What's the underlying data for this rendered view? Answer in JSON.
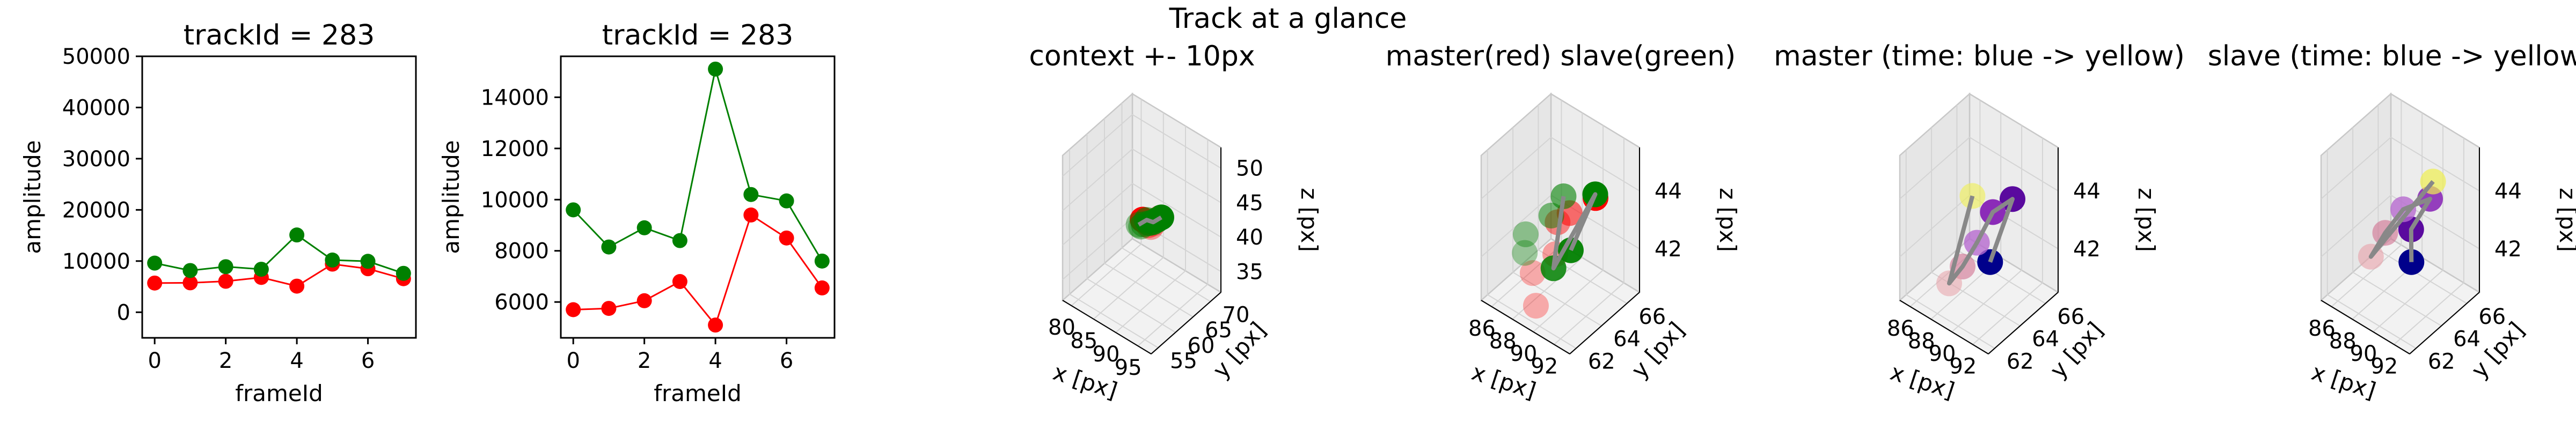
{
  "figure": {
    "suptitle": "Track at a glance"
  },
  "colors": {
    "red": "#ff0000",
    "green": "#008000",
    "blue": "#00008b",
    "yellow": "#f0f050",
    "line_gray": "#888888"
  },
  "chart_data": [
    {
      "type": "line",
      "title": "trackId = 283",
      "xlabel": "frameId",
      "ylabel": "amplitude",
      "xlim": [
        -0.35,
        7.35
      ],
      "ylim": [
        -5000,
        50000
      ],
      "xticks": [
        "0",
        "2",
        "4",
        "6"
      ],
      "yticks": [
        "0",
        "10000",
        "20000",
        "30000",
        "40000",
        "50000"
      ],
      "ytick_values": [
        0,
        10000,
        20000,
        30000,
        40000,
        50000
      ],
      "x": [
        0,
        1,
        2,
        3,
        4,
        5,
        6,
        7
      ],
      "series": [
        {
          "color": "red",
          "values": [
            5700,
            5750,
            6050,
            6800,
            5100,
            9400,
            8500,
            6550
          ]
        },
        {
          "color": "green",
          "values": [
            9600,
            8150,
            8900,
            8400,
            15100,
            10200,
            9950,
            7600
          ]
        }
      ]
    },
    {
      "type": "line",
      "title": "trackId = 283",
      "xlabel": "frameId",
      "ylabel": "amplitude",
      "xlim": [
        -0.35,
        7.35
      ],
      "ylim": [
        4600,
        15600
      ],
      "xticks": [
        "0",
        "2",
        "4",
        "6"
      ],
      "yticks": [
        "6000",
        "8000",
        "10000",
        "12000",
        "14000"
      ],
      "ytick_values": [
        6000,
        8000,
        10000,
        12000,
        14000
      ],
      "x": [
        0,
        1,
        2,
        3,
        4,
        5,
        6,
        7
      ],
      "series": [
        {
          "color": "red",
          "values": [
            5700,
            5750,
            6050,
            6800,
            5100,
            9400,
            8500,
            6550
          ]
        },
        {
          "color": "green",
          "values": [
            9600,
            8150,
            8900,
            8400,
            15100,
            10200,
            9950,
            7600
          ]
        }
      ]
    },
    {
      "type": "scatter",
      "title": "context +- 10px",
      "xlabel": "x [px]",
      "ylabel": "y [px]",
      "zlabel": "z [px]",
      "xlim": [
        78,
        98
      ],
      "ylim": [
        53,
        73
      ],
      "zlim": [
        32,
        53
      ],
      "xticks": [
        "80",
        "85",
        "90",
        "95"
      ],
      "xtick_values": [
        80,
        85,
        90,
        95
      ],
      "yticks": [
        "55",
        "60",
        "65",
        "70"
      ],
      "ytick_values": [
        55,
        60,
        65,
        70
      ],
      "zticks": [
        "35",
        "40",
        "45",
        "50"
      ],
      "ztick_values": [
        35,
        40,
        45,
        50
      ],
      "points": [
        {
          "x": 88.2,
          "y": 63.0,
          "z": 43.2,
          "color": "red",
          "alpha": 1.0
        },
        {
          "x": 88.8,
          "y": 63.2,
          "z": 43.0,
          "color": "red",
          "alpha": 0.55
        },
        {
          "x": 89.2,
          "y": 63.4,
          "z": 42.6,
          "color": "red",
          "alpha": 0.45
        },
        {
          "x": 89.6,
          "y": 63.6,
          "z": 42.4,
          "color": "red",
          "alpha": 0.35
        },
        {
          "x": 89.8,
          "y": 64.0,
          "z": 42.8,
          "color": "red",
          "alpha": 0.3
        },
        {
          "x": 90.6,
          "y": 64.6,
          "z": 43.6,
          "color": "red",
          "alpha": 0.3
        },
        {
          "x": 91.0,
          "y": 64.8,
          "z": 43.8,
          "color": "green",
          "alpha": 1.0
        },
        {
          "x": 90.4,
          "y": 64.4,
          "z": 43.4,
          "color": "green",
          "alpha": 0.9
        },
        {
          "x": 89.8,
          "y": 64.0,
          "z": 43.0,
          "color": "green",
          "alpha": 0.8
        },
        {
          "x": 89.2,
          "y": 63.6,
          "z": 42.8,
          "color": "green",
          "alpha": 0.7
        },
        {
          "x": 88.8,
          "y": 63.4,
          "z": 43.2,
          "color": "green",
          "alpha": 0.6
        },
        {
          "x": 88.4,
          "y": 63.0,
          "z": 42.6,
          "color": "green",
          "alpha": 0.5
        },
        {
          "x": 88.0,
          "y": 62.8,
          "z": 42.2,
          "color": "green",
          "alpha": 0.45
        },
        {
          "x": 87.6,
          "y": 62.6,
          "z": 42.4,
          "color": "green",
          "alpha": 0.4
        }
      ],
      "path": [
        {
          "x": 87.6,
          "y": 62.6,
          "z": 42.4
        },
        {
          "x": 88.8,
          "y": 63.4,
          "z": 43.2
        },
        {
          "x": 89.8,
          "y": 64.0,
          "z": 43.0
        },
        {
          "x": 91.0,
          "y": 64.8,
          "z": 43.8
        }
      ]
    },
    {
      "type": "scatter",
      "title": "master(red) slave(green)",
      "xlabel": "x [px]",
      "ylabel": "y [px]",
      "zlabel": "z [px]",
      "xlim": [
        85,
        93.5
      ],
      "ylim": [
        61.5,
        67
      ],
      "zlim": [
        40.5,
        45.5
      ],
      "xticks": [
        "86",
        "88",
        "90",
        "92"
      ],
      "xtick_values": [
        86,
        88,
        90,
        92
      ],
      "yticks": [
        "62",
        "64",
        "66"
      ],
      "ytick_values": [
        62,
        64,
        66
      ],
      "zticks": [
        "42",
        "44"
      ],
      "ztick_values": [
        42,
        44
      ],
      "points": [
        {
          "x": 92.2,
          "y": 64.6,
          "z": 44.4,
          "color": "red",
          "alpha": 1.0
        },
        {
          "x": 90.2,
          "y": 64.2,
          "z": 43.6,
          "color": "red",
          "alpha": 0.55
        },
        {
          "x": 88.8,
          "y": 64.4,
          "z": 42.9,
          "color": "red",
          "alpha": 0.45
        },
        {
          "x": 89.8,
          "y": 63.4,
          "z": 42.4,
          "color": "red",
          "alpha": 0.35
        },
        {
          "x": 88.6,
          "y": 62.6,
          "z": 41.8,
          "color": "red",
          "alpha": 0.3
        },
        {
          "x": 89.4,
          "y": 62.2,
          "z": 41.0,
          "color": "red",
          "alpha": 0.3
        },
        {
          "x": 91.2,
          "y": 65.4,
          "z": 44.0,
          "color": "green",
          "alpha": 1.0
        },
        {
          "x": 90.8,
          "y": 63.8,
          "z": 42.6,
          "color": "green",
          "alpha": 0.95
        },
        {
          "x": 90.6,
          "y": 62.6,
          "z": 42.4,
          "color": "green",
          "alpha": 0.85
        },
        {
          "x": 88.4,
          "y": 65.2,
          "z": 43.4,
          "color": "green",
          "alpha": 0.6
        },
        {
          "x": 88.2,
          "y": 64.4,
          "z": 43.0,
          "color": "green",
          "alpha": 0.5
        },
        {
          "x": 87.2,
          "y": 63.2,
          "z": 42.6,
          "color": "green",
          "alpha": 0.4
        },
        {
          "x": 87.6,
          "y": 62.8,
          "z": 42.2,
          "color": "green",
          "alpha": 0.35
        }
      ],
      "path": [
        {
          "x": 88.4,
          "y": 65.2,
          "z": 43.4
        },
        {
          "x": 89.8,
          "y": 63.4,
          "z": 42.4
        },
        {
          "x": 90.6,
          "y": 62.6,
          "z": 42.4
        },
        {
          "x": 91.2,
          "y": 65.4,
          "z": 44.0
        },
        {
          "x": 90.8,
          "y": 63.8,
          "z": 42.6
        }
      ]
    },
    {
      "type": "scatter",
      "title": "master (time: blue -> yellow)",
      "xlabel": "x [px]",
      "ylabel": "y [px]",
      "zlabel": "z [px]",
      "xlim": [
        85,
        93.5
      ],
      "ylim": [
        61.5,
        67
      ],
      "zlim": [
        40.5,
        45.5
      ],
      "xticks": [
        "86",
        "88",
        "90",
        "92"
      ],
      "xtick_values": [
        86,
        88,
        90,
        92
      ],
      "yticks": [
        "62",
        "64",
        "66"
      ],
      "ytick_values": [
        62,
        64,
        66
      ],
      "zticks": [
        "42",
        "44"
      ],
      "ztick_values": [
        42,
        44
      ],
      "points": [
        {
          "x": 91.6,
          "y": 63.2,
          "z": 42.6,
          "color": "#00008b",
          "alpha": 1.0
        },
        {
          "x": 91.8,
          "y": 64.8,
          "z": 44.2,
          "color": "#5a0a9e",
          "alpha": 1.0
        },
        {
          "x": 90.4,
          "y": 64.4,
          "z": 43.6,
          "color": "#8b2bb8",
          "alpha": 1.0
        },
        {
          "x": 89.6,
          "y": 63.8,
          "z": 42.6,
          "color": "#b66ad0",
          "alpha": 0.8
        },
        {
          "x": 89.2,
          "y": 63.0,
          "z": 42.0,
          "color": "#d07090",
          "alpha": 0.6
        },
        {
          "x": 88.4,
          "y": 62.6,
          "z": 41.4,
          "color": "#e8a0a8",
          "alpha": 0.55
        },
        {
          "x": 88.2,
          "y": 64.6,
          "z": 43.6,
          "color": "#f0f050",
          "alpha": 0.6
        }
      ],
      "path": [
        {
          "x": 91.6,
          "y": 63.2,
          "z": 42.6
        },
        {
          "x": 91.8,
          "y": 64.8,
          "z": 44.2
        },
        {
          "x": 90.4,
          "y": 64.4,
          "z": 43.6
        },
        {
          "x": 89.6,
          "y": 63.8,
          "z": 42.6
        },
        {
          "x": 89.2,
          "y": 63.0,
          "z": 42.0
        },
        {
          "x": 88.4,
          "y": 62.6,
          "z": 41.4
        },
        {
          "x": 88.2,
          "y": 64.6,
          "z": 43.6
        }
      ]
    },
    {
      "type": "scatter",
      "title": "slave (time: blue -> yellow)",
      "xlabel": "x [px]",
      "ylabel": "y [px]",
      "zlabel": "z [px]",
      "xlim": [
        85,
        93.5
      ],
      "ylim": [
        61.5,
        67
      ],
      "zlim": [
        40.5,
        45.5
      ],
      "xticks": [
        "86",
        "88",
        "90",
        "92"
      ],
      "xtick_values": [
        86,
        88,
        90,
        92
      ],
      "yticks": [
        "62",
        "64",
        "66"
      ],
      "ytick_values": [
        62,
        64,
        66
      ],
      "zticks": [
        "42",
        "44"
      ],
      "ztick_values": [
        42,
        44
      ],
      "points": [
        {
          "x": 91.6,
          "y": 63.2,
          "z": 42.6,
          "color": "#00008b",
          "alpha": 1.0
        },
        {
          "x": 90.6,
          "y": 64.0,
          "z": 43.2,
          "color": "#5a0a9e",
          "alpha": 1.0
        },
        {
          "x": 91.2,
          "y": 65.0,
          "z": 44.0,
          "color": "#8b2bb8",
          "alpha": 0.9
        },
        {
          "x": 89.6,
          "y": 64.2,
          "z": 43.6,
          "color": "#b66ad0",
          "alpha": 0.8
        },
        {
          "x": 88.6,
          "y": 63.6,
          "z": 42.8,
          "color": "#d07090",
          "alpha": 0.6
        },
        {
          "x": 88.2,
          "y": 62.8,
          "z": 42.2,
          "color": "#e8a0a8",
          "alpha": 0.6
        },
        {
          "x": 91.0,
          "y": 65.4,
          "z": 44.4,
          "color": "#f0f050",
          "alpha": 0.7
        }
      ],
      "path": [
        {
          "x": 91.6,
          "y": 63.2,
          "z": 42.6
        },
        {
          "x": 90.6,
          "y": 64.0,
          "z": 43.2
        },
        {
          "x": 91.2,
          "y": 65.0,
          "z": 44.0
        },
        {
          "x": 89.6,
          "y": 64.2,
          "z": 43.6
        },
        {
          "x": 88.6,
          "y": 63.6,
          "z": 42.8
        },
        {
          "x": 88.2,
          "y": 62.8,
          "z": 42.2
        },
        {
          "x": 91.0,
          "y": 65.4,
          "z": 44.4
        }
      ]
    }
  ]
}
